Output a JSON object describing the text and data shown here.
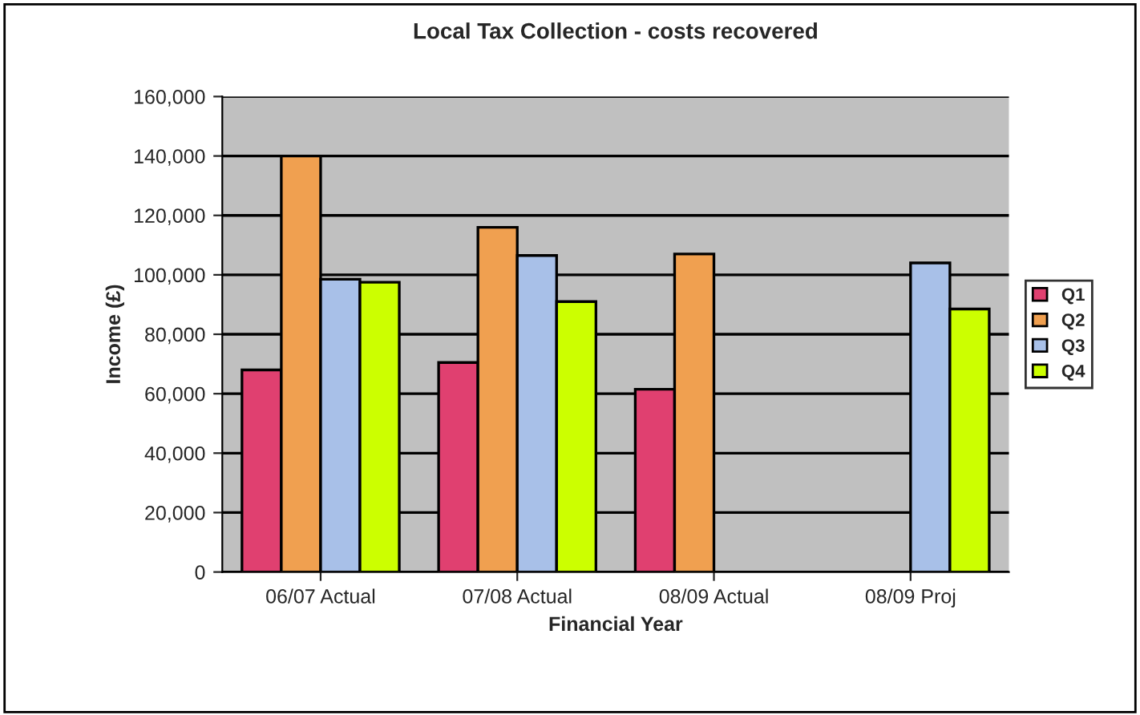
{
  "chart_data": {
    "type": "bar",
    "title": "Local Tax Collection - costs recovered",
    "xlabel": "Financial Year",
    "ylabel": "Income (£)",
    "categories": [
      "06/07 Actual",
      "07/08 Actual",
      "08/09 Actual",
      "08/09 Proj"
    ],
    "series": [
      {
        "name": "Q1",
        "color": "#e04070",
        "values": [
          68000,
          70500,
          61500,
          null
        ]
      },
      {
        "name": "Q2",
        "color": "#f0a050",
        "values": [
          140000,
          116000,
          107000,
          null
        ]
      },
      {
        "name": "Q3",
        "color": "#a8c0e8",
        "values": [
          98500,
          106500,
          null,
          104000
        ]
      },
      {
        "name": "Q4",
        "color": "#ccff00",
        "values": [
          97500,
          91000,
          null,
          88500
        ]
      }
    ],
    "ylim": [
      0,
      160000
    ],
    "yticks": [
      {
        "value": 0,
        "label": "0"
      },
      {
        "value": 20000,
        "label": "20,000"
      },
      {
        "value": 40000,
        "label": "40,000"
      },
      {
        "value": 60000,
        "label": "60,000"
      },
      {
        "value": 80000,
        "label": "80,000"
      },
      {
        "value": 100000,
        "label": "100,000"
      },
      {
        "value": 120000,
        "label": "120,000"
      },
      {
        "value": 140000,
        "label": "140,000"
      },
      {
        "value": 160000,
        "label": "160,000"
      }
    ],
    "grid": "y",
    "legend": "right"
  }
}
